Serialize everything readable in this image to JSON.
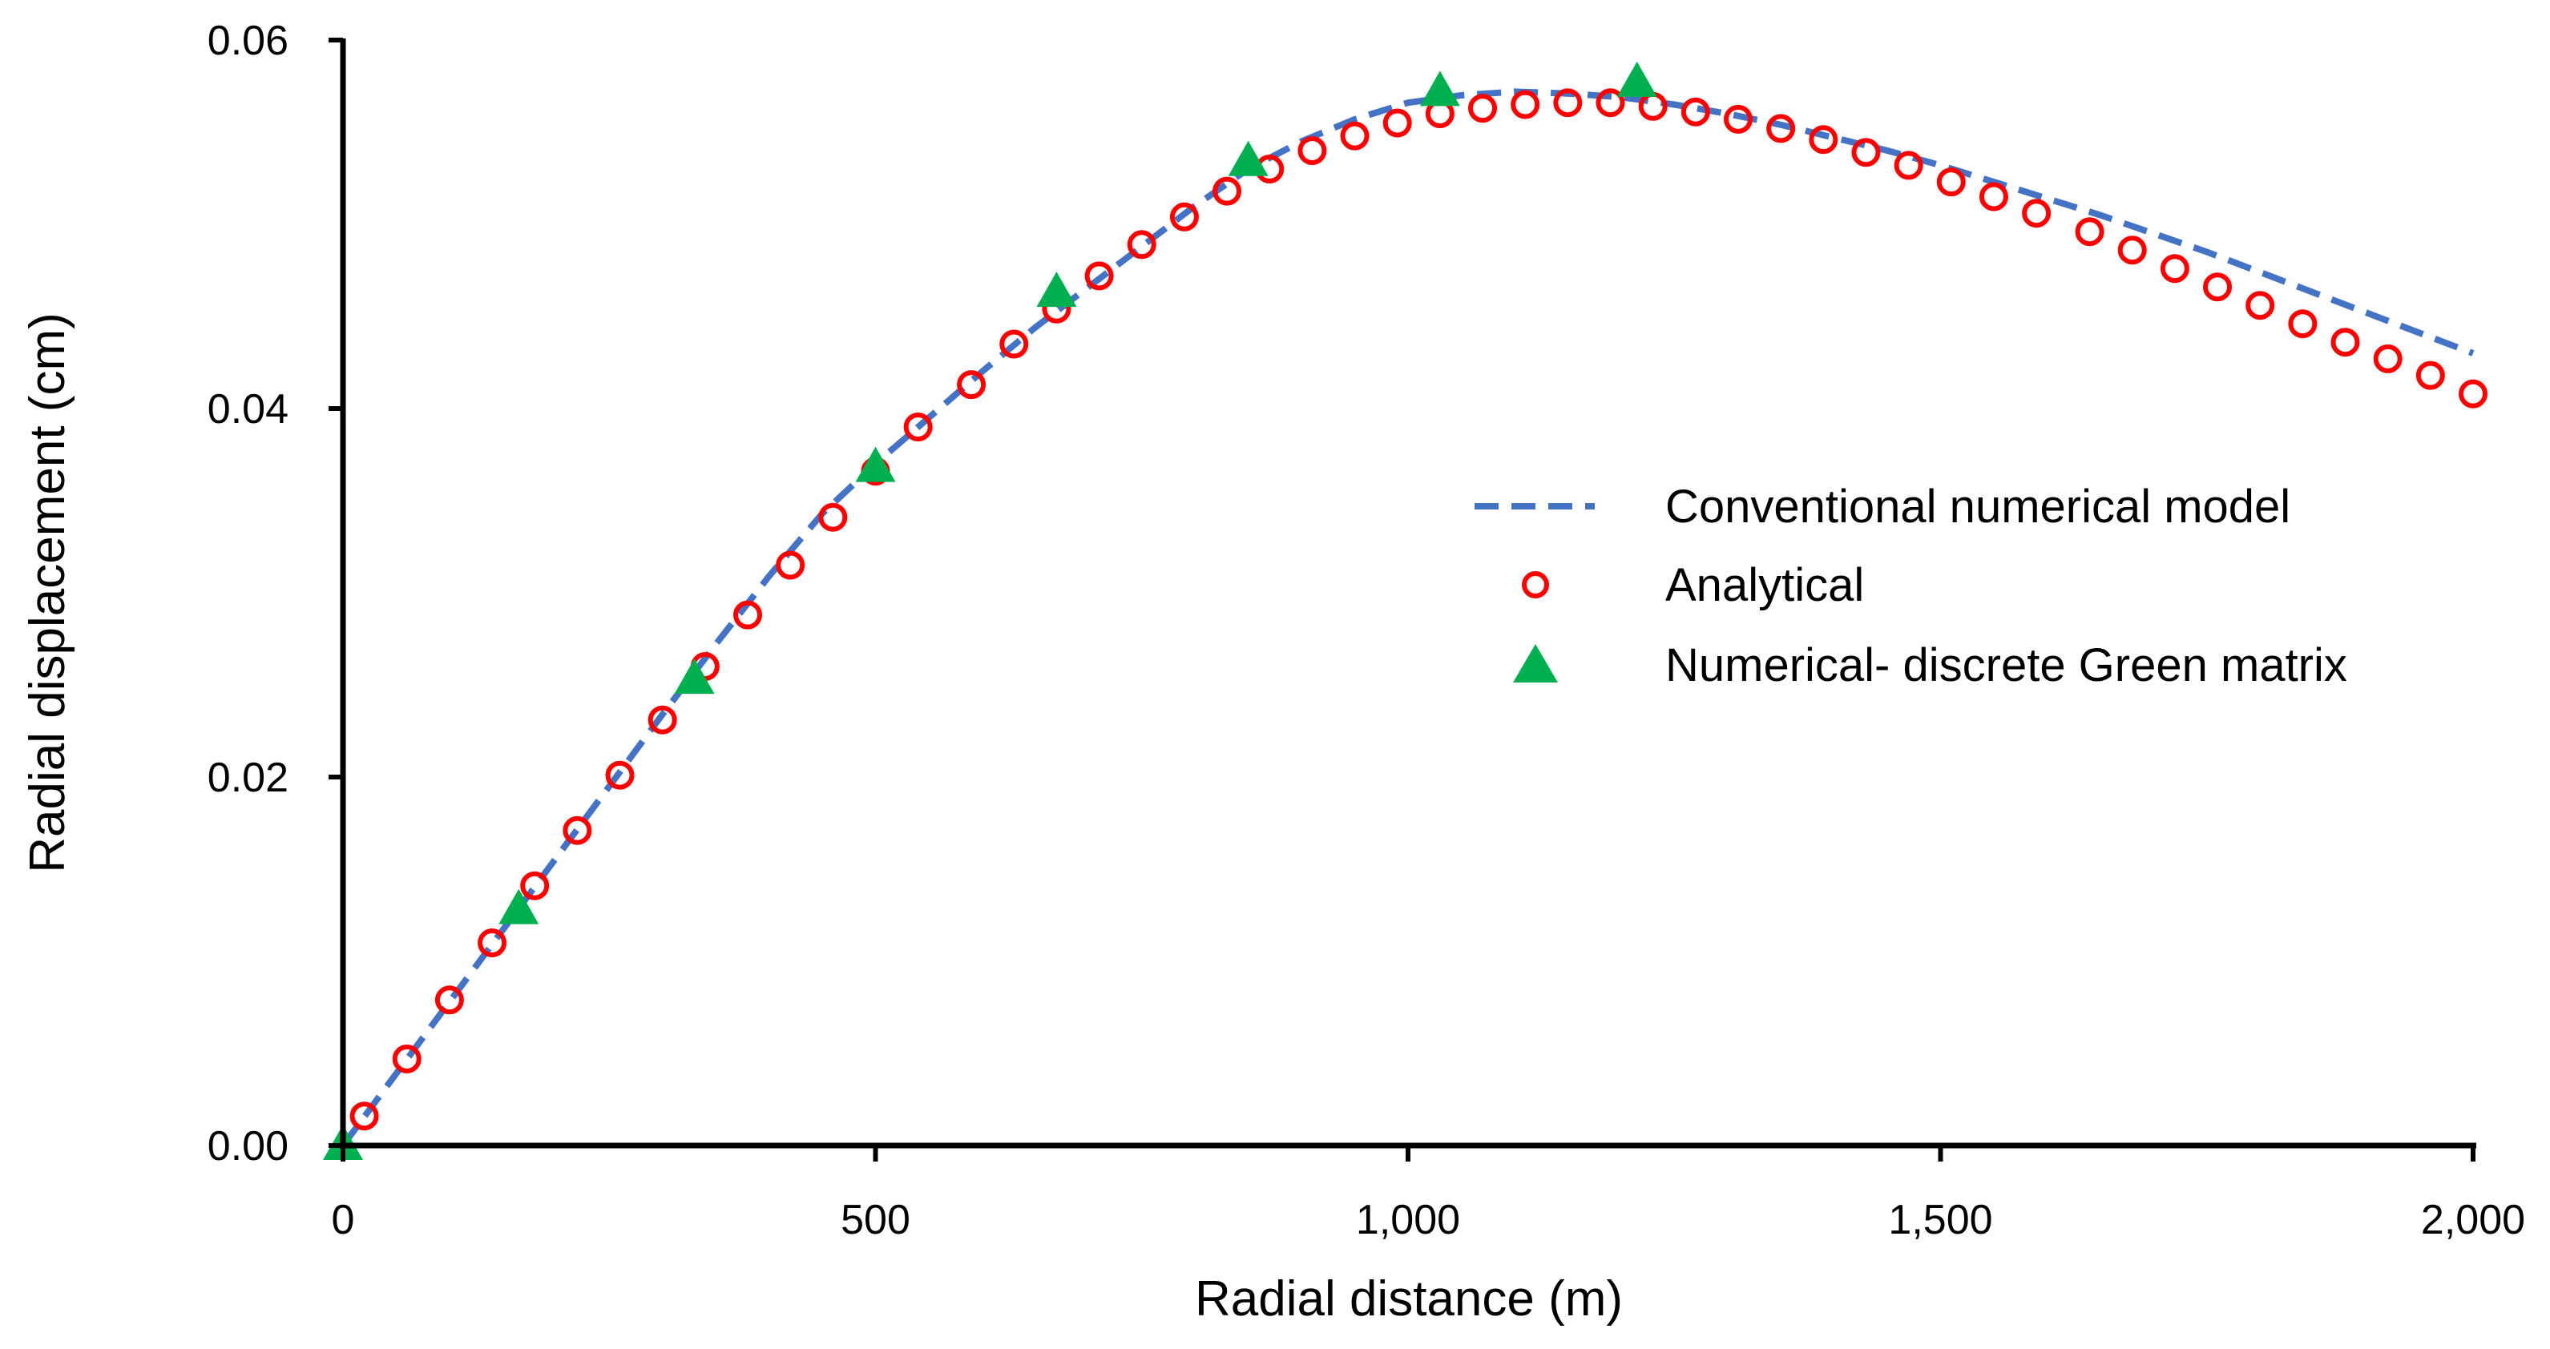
{
  "chart_data": {
    "type": "scatter",
    "title": "",
    "xlabel": "Radial distance (m)",
    "ylabel": "Radial displacement (cm)",
    "xlim": [
      0,
      2000
    ],
    "ylim": [
      0,
      0.06
    ],
    "x_ticks": [
      0,
      500,
      1000,
      1500,
      2000
    ],
    "x_tick_labels": [
      "0",
      "500",
      "1,000",
      "1,500",
      "2,000"
    ],
    "y_ticks": [
      0,
      0.02,
      0.04,
      0.06
    ],
    "y_tick_labels": [
      "0.00",
      "0.02",
      "0.04",
      "0.06"
    ],
    "grid": false,
    "legend_position": "right",
    "colors": {
      "conventional": "#4472C4",
      "analytical": "#FF0000",
      "green_matrix": "#00B050"
    },
    "series": [
      {
        "name": "Conventional numerical model",
        "style": "dashed-line",
        "x": [
          0,
          50,
          100,
          150,
          200,
          250,
          300,
          350,
          400,
          450,
          500,
          550,
          600,
          650,
          700,
          750,
          800,
          850,
          900,
          950,
          1000,
          1050,
          1100,
          1150,
          1200,
          1250,
          1300,
          1350,
          1400,
          1450,
          1500,
          1550,
          1600,
          1650,
          1700,
          1750,
          1800,
          1850,
          1900,
          1950,
          2000
        ],
        "y": [
          0,
          0.0039,
          0.0078,
          0.0117,
          0.0156,
          0.0195,
          0.0234,
          0.0272,
          0.0309,
          0.0343,
          0.037,
          0.0395,
          0.042,
          0.0444,
          0.0466,
          0.0488,
          0.051,
          0.053,
          0.0545,
          0.0557,
          0.0566,
          0.057,
          0.0572,
          0.0571,
          0.0569,
          0.0565,
          0.056,
          0.0554,
          0.0547,
          0.054,
          0.0532,
          0.0523,
          0.0514,
          0.0505,
          0.0495,
          0.0485,
          0.0474,
          0.0463,
          0.0452,
          0.0441,
          0.043
        ]
      },
      {
        "name": "Analytical",
        "style": "open-circle",
        "x": [
          20,
          60,
          100,
          140,
          180,
          220,
          260,
          300,
          340,
          380,
          420,
          460,
          500,
          540,
          590,
          630,
          670,
          710,
          750,
          790,
          830,
          870,
          910,
          950,
          990,
          1030,
          1070,
          1110,
          1150,
          1190,
          1230,
          1270,
          1310,
          1350,
          1390,
          1430,
          1470,
          1510,
          1550,
          1590,
          1640,
          1680,
          1720,
          1760,
          1800,
          1840,
          1880,
          1920,
          1960,
          2000
        ],
        "y": [
          0.0016,
          0.0047,
          0.0079,
          0.011,
          0.0141,
          0.0171,
          0.0201,
          0.0231,
          0.026,
          0.0288,
          0.0315,
          0.0341,
          0.0366,
          0.039,
          0.0413,
          0.0435,
          0.0454,
          0.0472,
          0.0489,
          0.0504,
          0.0518,
          0.053,
          0.054,
          0.0548,
          0.0555,
          0.056,
          0.0563,
          0.0565,
          0.0566,
          0.0566,
          0.0564,
          0.0561,
          0.0557,
          0.0552,
          0.0546,
          0.0539,
          0.0532,
          0.0523,
          0.0515,
          0.0506,
          0.0496,
          0.0486,
          0.0476,
          0.0466,
          0.0456,
          0.0446,
          0.0436,
          0.0427,
          0.0418,
          0.0408
        ]
      },
      {
        "name": "Numerical- discrete Green matrix",
        "style": "filled-triangle",
        "x": [
          0,
          165,
          330,
          500,
          670,
          850,
          1030,
          1215
        ],
        "y": [
          0.0,
          0.0128,
          0.0253,
          0.0368,
          0.0463,
          0.0534,
          0.0572,
          0.0577
        ]
      }
    ]
  }
}
